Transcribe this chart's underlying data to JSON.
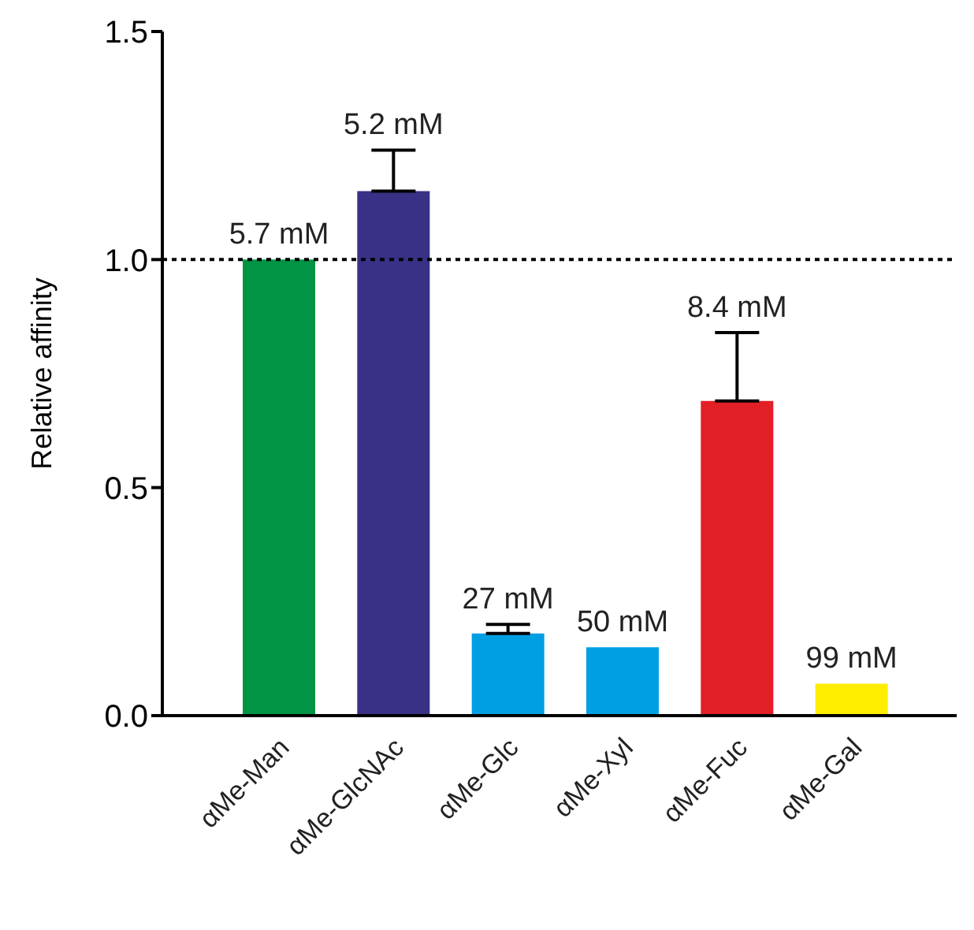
{
  "chart_data": {
    "type": "bar",
    "ylabel": "Relative affinity",
    "categories": [
      "αMe-Man",
      "αMe-GlcNAc",
      "αMe-Glc",
      "αMe-Xyl",
      "αMe-Fuc",
      "αMe-Gal"
    ],
    "values": [
      1.0,
      1.15,
      0.18,
      0.15,
      0.69,
      0.07
    ],
    "colors": [
      "#009444",
      "#393185",
      "#009fe3",
      "#009fe3",
      "#e21e26",
      "#ffed00"
    ],
    "errors": [
      null,
      [
        1.15,
        1.24
      ],
      [
        0.18,
        0.2
      ],
      null,
      [
        0.69,
        0.84
      ],
      null
    ],
    "annotations": [
      {
        "text": "5.7 mM",
        "x": "αMe-Man",
        "y": 1.0
      },
      {
        "text": "5.2 mM",
        "x": "αMe-GlcNAc",
        "y": 1.24
      },
      {
        "text": "27 mM",
        "x": "αMe-Glc",
        "y": 0.2
      },
      {
        "text": "50 mM",
        "x": "αMe-Xyl",
        "y": 0.15
      },
      {
        "text": "8.4 mM",
        "x": "αMe-Fuc",
        "y": 0.84
      },
      {
        "text": "99 mM",
        "x": "αMe-Gal",
        "y": 0.07
      }
    ],
    "ylim": [
      0,
      1.5
    ],
    "yticks": [
      {
        "value": 0,
        "label": "0.0"
      },
      {
        "value": 0.5,
        "label": "0.5"
      },
      {
        "value": 1,
        "label": "1.0"
      },
      1.5
    ],
    "ref_lines": [
      {
        "axis": "y",
        "value": 1,
        "label": null,
        "color": "#000000",
        "line_style": "dotted"
      }
    ],
    "grid": false,
    "legend": false
  }
}
